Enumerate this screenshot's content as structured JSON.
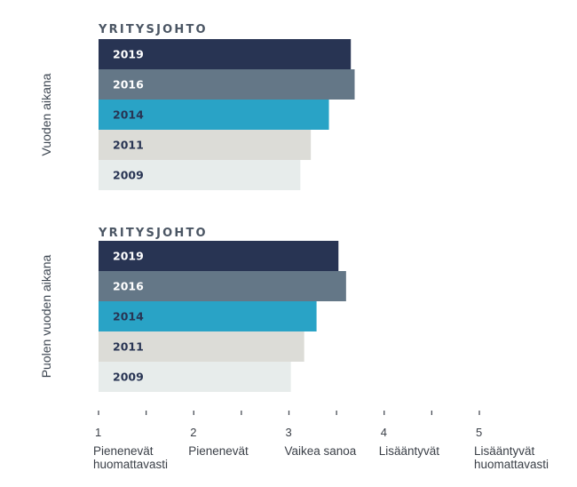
{
  "chart_data": [
    {
      "type": "bar",
      "orientation": "horizontal",
      "title": "YRITYSJOHTO",
      "side_label": "Vuoden aikana",
      "categories": [
        "2019",
        "2016",
        "2014",
        "2011",
        "2009"
      ],
      "values": [
        3.65,
        3.69,
        3.42,
        3.23,
        3.12
      ],
      "xlim": [
        1,
        5
      ],
      "colors": [
        "#283453",
        "#647787",
        "#29a3c6",
        "#dcdcd7",
        "#e7eceb"
      ]
    },
    {
      "type": "bar",
      "orientation": "horizontal",
      "title": "YRITYSJOHTO",
      "side_label": "Puolen vuoden aikana",
      "categories": [
        "2019",
        "2016",
        "2014",
        "2011",
        "2009"
      ],
      "values": [
        3.52,
        3.6,
        3.29,
        3.16,
        3.02
      ],
      "xlim": [
        1,
        5
      ],
      "colors": [
        "#283453",
        "#647787",
        "#29a3c6",
        "#dcdcd7",
        "#e7eceb"
      ]
    }
  ],
  "label_colors": [
    "#ffffff",
    "#ffffff",
    "#283453",
    "#283453",
    "#283453"
  ],
  "x_axis": {
    "ticks": [
      {
        "value": 1,
        "lines": [
          "Pienenevät",
          "huomattavasti"
        ]
      },
      {
        "value": 2,
        "lines": [
          "Pienenevät"
        ]
      },
      {
        "value": 3,
        "lines": [
          "Vaikea sanoa"
        ]
      },
      {
        "value": 4,
        "lines": [
          "Lisääntyvät"
        ]
      },
      {
        "value": 5,
        "lines": [
          "Lisääntyvät",
          "huomattavasti"
        ]
      }
    ]
  }
}
